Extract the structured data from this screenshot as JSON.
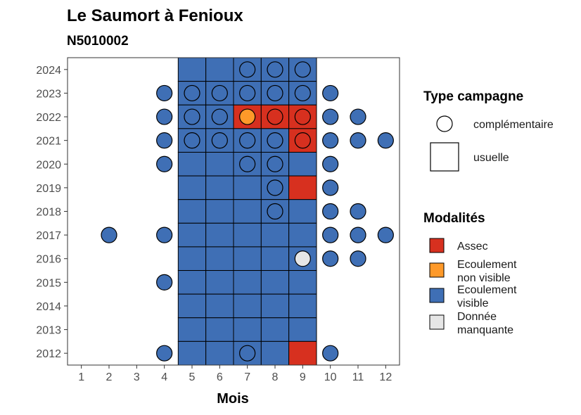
{
  "chart_data": {
    "type": "heatmap",
    "title": "Le Saumort à Fenioux",
    "subtitle": "N5010002",
    "xlabel": "Mois",
    "ylabel": "",
    "x_ticks": [
      "1",
      "2",
      "3",
      "4",
      "5",
      "6",
      "7",
      "8",
      "9",
      "10",
      "11",
      "12"
    ],
    "y_ticks": [
      "2012",
      "2013",
      "2014",
      "2015",
      "2016",
      "2017",
      "2018",
      "2019",
      "2020",
      "2021",
      "2022",
      "2023",
      "2024"
    ],
    "xlim": [
      0.5,
      12.5
    ],
    "ylim": [
      2011.5,
      2024.5
    ],
    "grid": false,
    "legend_position": "right",
    "colors": {
      "assec": "#d7301f",
      "ecoulement_non_visible": "#fe9929",
      "ecoulement_visible": "#3f6fb5",
      "donnee_manquante": "#e6e6e6"
    },
    "legend_type": {
      "title": "Type campagne",
      "entries": [
        {
          "label": "complémentaire",
          "shape": "circle"
        },
        {
          "label": "usuelle",
          "shape": "square"
        }
      ]
    },
    "legend_modalites": {
      "title": "Modalités",
      "entries": [
        {
          "key": "assec",
          "lines": [
            "Assec"
          ]
        },
        {
          "key": "ecoulement_non_visible",
          "lines": [
            "Ecoulement",
            "non visible"
          ]
        },
        {
          "key": "ecoulement_visible",
          "lines": [
            "Ecoulement",
            "visible"
          ]
        },
        {
          "key": "donnee_manquante",
          "lines": [
            "Donnée",
            "manquante"
          ]
        }
      ]
    },
    "usuelle": [
      {
        "year": 2024,
        "values": [
          "V",
          "V",
          "V",
          "V",
          "V"
        ]
      },
      {
        "year": 2023,
        "values": [
          "V",
          "V",
          "V",
          "V",
          "V"
        ]
      },
      {
        "year": 2022,
        "values": [
          "V",
          "V",
          "A",
          "A",
          "A"
        ]
      },
      {
        "year": 2021,
        "values": [
          "V",
          "V",
          "V",
          "V",
          "A"
        ]
      },
      {
        "year": 2020,
        "values": [
          "V",
          "V",
          "V",
          "V",
          "V"
        ]
      },
      {
        "year": 2019,
        "values": [
          "V",
          "V",
          "V",
          "V",
          "A"
        ]
      },
      {
        "year": 2018,
        "values": [
          "V",
          "V",
          "V",
          "V",
          "V"
        ]
      },
      {
        "year": 2017,
        "values": [
          "V",
          "V",
          "V",
          "V",
          "V"
        ]
      },
      {
        "year": 2016,
        "values": [
          "V",
          "V",
          "V",
          "V",
          "V"
        ]
      },
      {
        "year": 2015,
        "values": [
          "V",
          "V",
          "V",
          "V",
          "V"
        ]
      },
      {
        "year": 2014,
        "values": [
          "V",
          "V",
          "V",
          "V",
          "V"
        ]
      },
      {
        "year": 2013,
        "values": [
          "V",
          "V",
          "V",
          "V",
          "V"
        ]
      },
      {
        "year": 2012,
        "values": [
          "V",
          "V",
          "V",
          "V",
          "A"
        ]
      }
    ],
    "usuelle_months": [
      5,
      6,
      7,
      8,
      9
    ],
    "complementaire": [
      {
        "year": 2024,
        "month": 7,
        "value": "V"
      },
      {
        "year": 2024,
        "month": 8,
        "value": "V"
      },
      {
        "year": 2024,
        "month": 9,
        "value": "V"
      },
      {
        "year": 2023,
        "month": 4,
        "value": "V"
      },
      {
        "year": 2023,
        "month": 5,
        "value": "V"
      },
      {
        "year": 2023,
        "month": 6,
        "value": "V"
      },
      {
        "year": 2023,
        "month": 7,
        "value": "V"
      },
      {
        "year": 2023,
        "month": 8,
        "value": "V"
      },
      {
        "year": 2023,
        "month": 9,
        "value": "V"
      },
      {
        "year": 2023,
        "month": 10,
        "value": "V"
      },
      {
        "year": 2022,
        "month": 4,
        "value": "V"
      },
      {
        "year": 2022,
        "month": 5,
        "value": "V"
      },
      {
        "year": 2022,
        "month": 6,
        "value": "V"
      },
      {
        "year": 2022,
        "month": 7,
        "value": "N"
      },
      {
        "year": 2022,
        "month": 8,
        "value": "A"
      },
      {
        "year": 2022,
        "month": 9,
        "value": "A"
      },
      {
        "year": 2022,
        "month": 10,
        "value": "V"
      },
      {
        "year": 2022,
        "month": 11,
        "value": "V"
      },
      {
        "year": 2021,
        "month": 4,
        "value": "V"
      },
      {
        "year": 2021,
        "month": 5,
        "value": "V"
      },
      {
        "year": 2021,
        "month": 6,
        "value": "V"
      },
      {
        "year": 2021,
        "month": 7,
        "value": "V"
      },
      {
        "year": 2021,
        "month": 8,
        "value": "V"
      },
      {
        "year": 2021,
        "month": 9,
        "value": "A"
      },
      {
        "year": 2021,
        "month": 10,
        "value": "V"
      },
      {
        "year": 2021,
        "month": 11,
        "value": "V"
      },
      {
        "year": 2021,
        "month": 12,
        "value": "V"
      },
      {
        "year": 2020,
        "month": 4,
        "value": "V"
      },
      {
        "year": 2020,
        "month": 7,
        "value": "V"
      },
      {
        "year": 2020,
        "month": 8,
        "value": "V"
      },
      {
        "year": 2020,
        "month": 10,
        "value": "V"
      },
      {
        "year": 2019,
        "month": 8,
        "value": "V"
      },
      {
        "year": 2019,
        "month": 10,
        "value": "V"
      },
      {
        "year": 2018,
        "month": 8,
        "value": "V"
      },
      {
        "year": 2018,
        "month": 10,
        "value": "V"
      },
      {
        "year": 2018,
        "month": 11,
        "value": "V"
      },
      {
        "year": 2017,
        "month": 2,
        "value": "V"
      },
      {
        "year": 2017,
        "month": 4,
        "value": "V"
      },
      {
        "year": 2017,
        "month": 10,
        "value": "V"
      },
      {
        "year": 2017,
        "month": 11,
        "value": "V"
      },
      {
        "year": 2017,
        "month": 12,
        "value": "V"
      },
      {
        "year": 2016,
        "month": 9,
        "value": "M"
      },
      {
        "year": 2016,
        "month": 10,
        "value": "V"
      },
      {
        "year": 2016,
        "month": 11,
        "value": "V"
      },
      {
        "year": 2015,
        "month": 4,
        "value": "V"
      },
      {
        "year": 2012,
        "month": 4,
        "value": "V"
      },
      {
        "year": 2012,
        "month": 7,
        "value": "V"
      },
      {
        "year": 2012,
        "month": 10,
        "value": "V"
      }
    ],
    "value_codes": {
      "A": "assec",
      "N": "ecoulement_non_visible",
      "V": "ecoulement_visible",
      "M": "donnee_manquante"
    }
  }
}
